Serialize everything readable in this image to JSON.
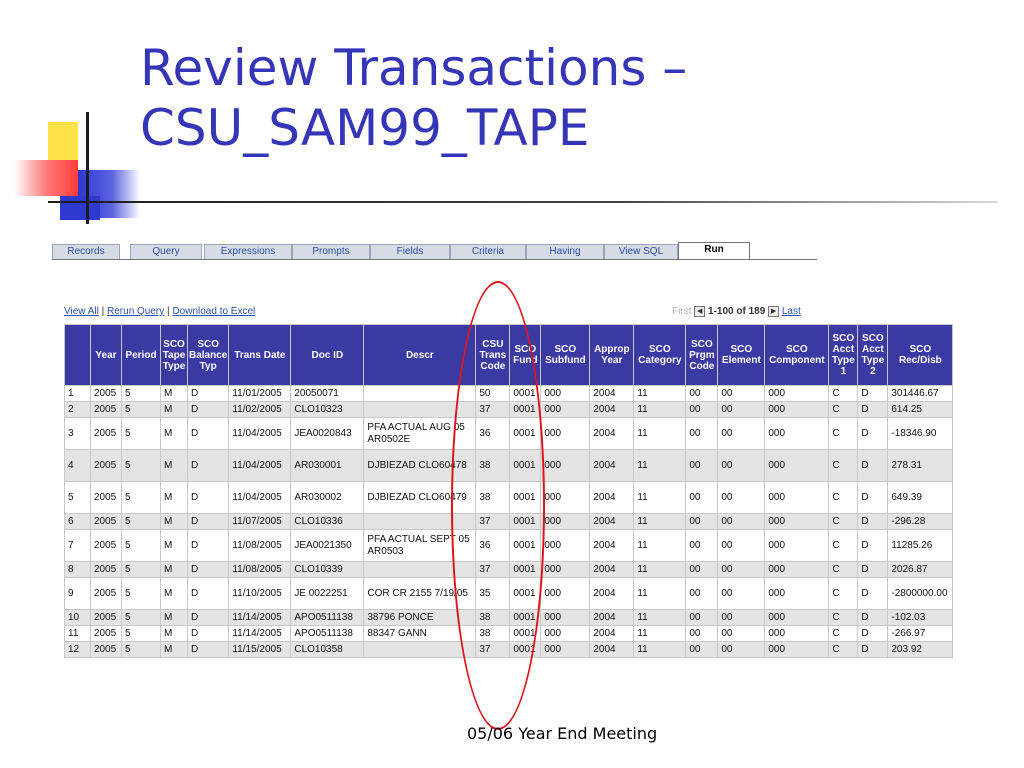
{
  "slide": {
    "title_line1": "Review Transactions –",
    "title_line2": "CSU_SAM99_TAPE",
    "footer": "05/06 Year End Meeting"
  },
  "tabs": [
    {
      "label": "Records"
    },
    {
      "label": "Query"
    },
    {
      "label": "Expressions"
    },
    {
      "label": "Prompts"
    },
    {
      "label": "Fields"
    },
    {
      "label": "Criteria"
    },
    {
      "label": "Having"
    },
    {
      "label": "View SQL"
    },
    {
      "label": "Run",
      "active": true
    }
  ],
  "links": {
    "view_all": "View All",
    "rerun": "Rerun Query",
    "download": "Download to Excel",
    "sep": "|"
  },
  "pager": {
    "first": "First",
    "range": "1-100 of 189",
    "last": "Last"
  },
  "grid": {
    "columns": [
      "",
      "Year",
      "Period",
      "SCO Tape Type",
      "SCO Balance Typ",
      "Trans Date",
      "Doc ID",
      "Descr",
      "CSU Trans Code",
      "SCO Fund",
      "SCO Subfund",
      "Approp Year",
      "SCO Category",
      "SCO Prgm Code",
      "SCO Element",
      "SCO Component",
      "SCO Acct Type 1",
      "SCO Acct Type 2",
      "SCO Rec/Disb"
    ],
    "rows": [
      [
        "1",
        "2005",
        "5",
        "M",
        "D",
        "11/01/2005",
        "20050071",
        "",
        "50",
        "0001",
        "000",
        "2004",
        "11",
        "00",
        "00",
        "000",
        "C",
        "D",
        "301446.67"
      ],
      [
        "2",
        "2005",
        "5",
        "M",
        "D",
        "11/02/2005",
        "CLO10323",
        "",
        "37",
        "0001",
        "000",
        "2004",
        "11",
        "00",
        "00",
        "000",
        "C",
        "D",
        "614.25"
      ],
      [
        "3",
        "2005",
        "5",
        "M",
        "D",
        "11/04/2005",
        "JEA0020843",
        "PFA ACTUAL AUG 05 AR0502E",
        "36",
        "0001",
        "000",
        "2004",
        "11",
        "00",
        "00",
        "000",
        "C",
        "D",
        "-18346.90"
      ],
      [
        "4",
        "2005",
        "5",
        "M",
        "D",
        "11/04/2005",
        "AR030001",
        "DJBIEZAD CLO60478",
        "38",
        "0001",
        "000",
        "2004",
        "11",
        "00",
        "00",
        "000",
        "C",
        "D",
        "278.31"
      ],
      [
        "5",
        "2005",
        "5",
        "M",
        "D",
        "11/04/2005",
        "AR030002",
        "DJBIEZAD CLO60479",
        "38",
        "0001",
        "000",
        "2004",
        "11",
        "00",
        "00",
        "000",
        "C",
        "D",
        "649.39"
      ],
      [
        "6",
        "2005",
        "5",
        "M",
        "D",
        "11/07/2005",
        "CLO10336",
        "",
        "37",
        "0001",
        "000",
        "2004",
        "11",
        "00",
        "00",
        "000",
        "C",
        "D",
        "-296.28"
      ],
      [
        "7",
        "2005",
        "5",
        "M",
        "D",
        "11/08/2005",
        "JEA0021350",
        "PFA ACTUAL SEPT 05 AR0503",
        "36",
        "0001",
        "000",
        "2004",
        "11",
        "00",
        "00",
        "000",
        "C",
        "D",
        "11285.26"
      ],
      [
        "8",
        "2005",
        "5",
        "M",
        "D",
        "11/08/2005",
        "CLO10339",
        "",
        "37",
        "0001",
        "000",
        "2004",
        "11",
        "00",
        "00",
        "000",
        "C",
        "D",
        "2026.87"
      ],
      [
        "9",
        "2005",
        "5",
        "M",
        "D",
        "11/10/2005",
        "JE 0022251",
        "COR CR 2155 7/19/05",
        "35",
        "0001",
        "000",
        "2004",
        "11",
        "00",
        "00",
        "000",
        "C",
        "D",
        "-2800000.00"
      ],
      [
        "10",
        "2005",
        "5",
        "M",
        "D",
        "11/14/2005",
        "APO0511138",
        "38796 PONCE",
        "38",
        "0001",
        "000",
        "2004",
        "11",
        "00",
        "00",
        "000",
        "C",
        "D",
        "-102.03"
      ],
      [
        "11",
        "2005",
        "5",
        "M",
        "D",
        "11/14/2005",
        "APO0511138",
        "88347 GANN",
        "38",
        "0001",
        "000",
        "2004",
        "11",
        "00",
        "00",
        "000",
        "C",
        "D",
        "-266.97"
      ],
      [
        "12",
        "2005",
        "5",
        "M",
        "D",
        "11/15/2005",
        "CLO10358",
        "",
        "37",
        "0001",
        "000",
        "2004",
        "11",
        "00",
        "00",
        "000",
        "C",
        "D",
        "203.92"
      ]
    ]
  }
}
